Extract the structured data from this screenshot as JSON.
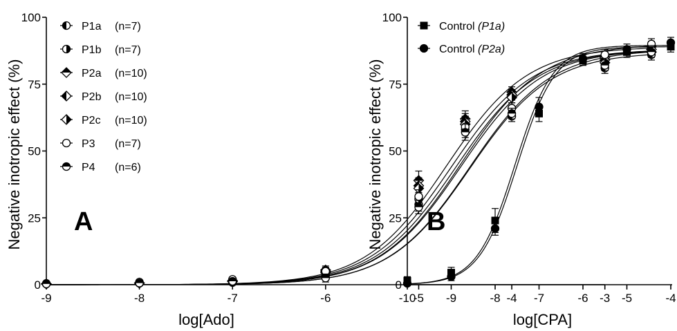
{
  "chart_data": [
    {
      "type": "scatter",
      "panel_label": "A",
      "xlabel": "log[Ado]",
      "ylabel": "Negative inotropic effect (%)",
      "xlim": [
        -9,
        -2.5
      ],
      "ylim": [
        0,
        100
      ],
      "xticks": [
        -9,
        -8,
        -7,
        -6,
        -5,
        -4,
        -3
      ],
      "xtick_labels": [
        "-9",
        "-8",
        "-7",
        "-6",
        "-5",
        "-4",
        "-3"
      ],
      "yticks": [
        0,
        25,
        50,
        75,
        100
      ],
      "ytick_labels": [
        "0",
        "25",
        "50",
        "75",
        "100"
      ],
      "legend_position": "top-left",
      "x": [
        -9,
        -8,
        -7,
        -6,
        -5,
        -4.5,
        -4,
        -3,
        -2.5
      ],
      "series": [
        {
          "name": "P1a",
          "n_label": "(n=7)",
          "marker": "circle-half-left",
          "values": [
            0.3,
            0.5,
            0.8,
            3.5,
            30,
            58,
            63,
            81,
            86
          ],
          "errors": [
            0.5,
            0.5,
            0.8,
            1.5,
            2.5,
            3,
            2,
            2,
            2
          ],
          "fit_logec50": -4.45,
          "fit_top": 88
        },
        {
          "name": "P1b",
          "n_label": "(n=7)",
          "marker": "circle-half-right",
          "values": [
            0.3,
            0.6,
            1.2,
            4.5,
            32,
            60,
            66,
            84,
            88
          ],
          "errors": [
            0.5,
            0.5,
            0.8,
            1.5,
            2.5,
            3,
            2,
            2,
            2
          ],
          "fit_logec50": -4.55,
          "fit_top": 88
        },
        {
          "name": "P2a",
          "n_label": "(n=10)",
          "marker": "diamond-half-top",
          "values": [
            0.3,
            0.6,
            1.5,
            5.5,
            39,
            62,
            72,
            85,
            89
          ],
          "errors": [
            0.5,
            0.5,
            0.8,
            1.5,
            3.5,
            3,
            2,
            2,
            2
          ],
          "fit_logec50": -4.7,
          "fit_top": 89
        },
        {
          "name": "P2b",
          "n_label": "(n=10)",
          "marker": "diamond-half-left",
          "values": [
            0.3,
            0.6,
            1.3,
            5,
            37,
            61,
            71,
            84,
            88
          ],
          "errors": [
            0.5,
            0.5,
            0.8,
            1.5,
            3,
            3,
            2,
            2,
            2
          ],
          "fit_logec50": -4.65,
          "fit_top": 88
        },
        {
          "name": "P2c",
          "n_label": "(n=10)",
          "marker": "diamond-half-right",
          "values": [
            0.3,
            0.6,
            1.2,
            4.5,
            36,
            60,
            70,
            83,
            87
          ],
          "errors": [
            0.5,
            0.5,
            0.8,
            1.5,
            3,
            3,
            2,
            2,
            2
          ],
          "fit_logec50": -4.6,
          "fit_top": 88
        },
        {
          "name": "P3",
          "n_label": "(n=7)",
          "marker": "circle-open",
          "values": [
            0.5,
            1,
            2,
            5,
            33,
            59,
            66,
            86,
            90
          ],
          "errors": [
            0.5,
            0.5,
            0.8,
            1.5,
            2.5,
            3,
            2,
            2,
            2
          ],
          "fit_logec50": -4.55,
          "fit_top": 90
        },
        {
          "name": "P4",
          "n_label": "(n=6)",
          "marker": "circle-half-top",
          "values": [
            0.3,
            0.6,
            1.3,
            2.5,
            29,
            57,
            64,
            82,
            87
          ],
          "errors": [
            0.5,
            0.5,
            0.8,
            1.5,
            2.5,
            3,
            2,
            2,
            2
          ],
          "fit_logec50": -4.45,
          "fit_top": 87
        }
      ]
    },
    {
      "type": "scatter",
      "panel_label": "B",
      "xlabel": "log[CPA]",
      "ylabel": "Negative inotropic effect (%)",
      "xlim": [
        -10,
        -4
      ],
      "ylim": [
        0,
        100
      ],
      "xticks": [
        -10,
        -9,
        -8,
        -7,
        -6,
        -5,
        -4
      ],
      "xtick_labels": [
        "-10",
        "-9",
        "-8",
        "-7",
        "-6",
        "-5",
        "-4"
      ],
      "yticks": [
        0,
        25,
        50,
        75,
        100
      ],
      "ytick_labels": [
        "0",
        "25",
        "50",
        "75",
        "100"
      ],
      "legend_position": "top-left",
      "x": [
        -10,
        -9,
        -8,
        -7,
        -6,
        -5,
        -4
      ],
      "series": [
        {
          "name": "Control",
          "name_italic": "(P1a)",
          "marker": "square-filled",
          "values": [
            1.5,
            4.5,
            24,
            64,
            84,
            87,
            89
          ],
          "errors": [
            1.5,
            2,
            4.5,
            3,
            2,
            2,
            2
          ],
          "fit_logec50": -7.5,
          "fit_top": 89
        },
        {
          "name": "Control",
          "name_italic": "(P2a)",
          "marker": "circle-filled",
          "values": [
            0.5,
            3,
            21,
            66.5,
            84.5,
            88,
            90.5
          ],
          "errors": [
            1,
            1.5,
            2.5,
            3.5,
            2,
            2,
            2
          ],
          "fit_logec50": -7.55,
          "fit_top": 89.5
        }
      ]
    }
  ]
}
